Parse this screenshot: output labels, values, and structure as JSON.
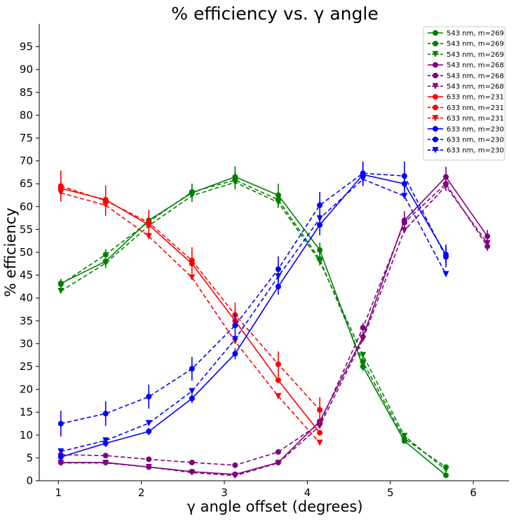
{
  "chart_data": {
    "type": "line",
    "title": "% efficiency vs. γ angle",
    "xlabel": "γ angle offset (degrees)",
    "ylabel": "% efficiency",
    "xlim": [
      0.77,
      6.43
    ],
    "ylim": [
      0,
      100
    ],
    "xticks": [
      "1",
      "2",
      "3",
      "4",
      "5",
      "6"
    ],
    "yticks": [
      "0",
      "5",
      "10",
      "15",
      "20",
      "25",
      "30",
      "35",
      "40",
      "45",
      "50",
      "55",
      "60",
      "65",
      "70",
      "75",
      "80",
      "85",
      "90",
      "95"
    ],
    "grid": false,
    "legend_position": "top-right",
    "series": [
      {
        "name": "543 nm, m=269",
        "color": "#008000",
        "linestyle": "solid",
        "marker": "circle",
        "x": [
          1.03,
          1.57,
          2.09,
          2.61,
          3.13,
          3.65,
          4.15,
          4.67,
          5.17,
          5.67
        ],
        "y": [
          43.2,
          48.0,
          57.0,
          63.0,
          66.5,
          62.5,
          50.5,
          25.0,
          8.7,
          1.2
        ],
        "err": [
          1.0,
          1.5,
          1.5,
          2.0,
          2.3,
          2.5,
          1.6,
          1.0,
          0.6,
          0.6
        ]
      },
      {
        "name": "543 nm, m=269",
        "color": "#008000",
        "linestyle": "dashed",
        "marker": "circle",
        "x": [
          1.03,
          1.57,
          2.09,
          2.61,
          3.13,
          3.65,
          4.15,
          4.67,
          5.17,
          5.67
        ],
        "y": [
          43.0,
          49.5,
          56.7,
          63.2,
          65.8,
          61.5,
          48.5,
          26.0,
          9.2,
          3.0
        ],
        "err": [
          1.0,
          1.2,
          1.2,
          1.8,
          2.0,
          1.8,
          1.4,
          1.0,
          0.6,
          0.6
        ]
      },
      {
        "name": "543 nm, m=269",
        "color": "#008000",
        "linestyle": "dashed",
        "marker": "triangle-down",
        "x": [
          1.03,
          1.57,
          2.09,
          2.61,
          3.13,
          3.65,
          4.15,
          4.67,
          5.17,
          5.67
        ],
        "y": [
          41.5,
          47.6,
          55.8,
          62.4,
          65.3,
          60.9,
          48.0,
          27.5,
          9.8,
          2.4
        ],
        "err": [
          0.4,
          0.4,
          0.4,
          0.4,
          0.4,
          0.4,
          0.4,
          0.4,
          0.4,
          0.4
        ]
      },
      {
        "name": "543 nm, m=268",
        "color": "#800080",
        "linestyle": "solid",
        "marker": "circle",
        "x": [
          1.03,
          1.57,
          2.09,
          2.61,
          3.13,
          3.65,
          4.15,
          4.67,
          5.17,
          5.67,
          6.17
        ],
        "y": [
          4.0,
          4.0,
          3.0,
          2.0,
          1.4,
          4.0,
          13.0,
          31.5,
          57.0,
          66.5,
          53.5
        ],
        "err": [
          0.5,
          0.5,
          0.5,
          0.5,
          0.5,
          0.5,
          0.8,
          1.0,
          2.0,
          2.2,
          1.4
        ]
      },
      {
        "name": "543 nm, m=268",
        "color": "#800080",
        "linestyle": "dashed",
        "marker": "circle",
        "x": [
          1.03,
          1.57,
          2.09,
          2.61,
          3.13,
          3.65,
          4.15,
          4.67,
          5.17,
          5.67,
          6.17
        ],
        "y": [
          5.7,
          5.5,
          4.7,
          4.0,
          3.4,
          6.3,
          12.5,
          33.5,
          56.5,
          65.0,
          51.3
        ],
        "err": [
          0.5,
          0.5,
          0.5,
          0.5,
          0.5,
          0.5,
          0.8,
          1.0,
          1.6,
          1.6,
          1.0
        ]
      },
      {
        "name": "543 nm, m=268",
        "color": "#800080",
        "linestyle": "dashed",
        "marker": "triangle-down",
        "x": [
          1.03,
          1.57,
          2.09,
          2.61,
          3.13,
          3.65,
          4.15,
          4.67,
          5.17,
          5.67,
          6.17
        ],
        "y": [
          3.9,
          3.9,
          3.0,
          1.8,
          1.1,
          3.9,
          12.0,
          31.0,
          54.8,
          64.5,
          52.0
        ],
        "err": [
          0.3,
          0.3,
          0.3,
          0.3,
          0.3,
          0.3,
          0.3,
          0.3,
          0.3,
          0.3,
          0.3
        ]
      },
      {
        "name": "633 nm, m=231",
        "color": "#ff0000",
        "linestyle": "solid",
        "marker": "circle",
        "x": [
          1.03,
          1.57,
          2.09,
          2.61,
          3.13,
          3.65,
          4.15
        ],
        "y": [
          64.0,
          61.5,
          56.0,
          47.5,
          35.0,
          22.0,
          10.5
        ],
        "err": [
          0.6,
          0.6,
          0.6,
          0.6,
          0.6,
          0.6,
          0.6
        ]
      },
      {
        "name": "633 nm, m=231",
        "color": "#ff0000",
        "linestyle": "dashed",
        "marker": "circle",
        "x": [
          1.03,
          1.57,
          2.09,
          2.61,
          3.13,
          3.65,
          4.15
        ],
        "y": [
          64.5,
          61.3,
          56.5,
          48.2,
          36.3,
          25.5,
          15.5
        ],
        "err": [
          3.4,
          3.3,
          2.8,
          2.9,
          2.7,
          2.8,
          2.8
        ]
      },
      {
        "name": "633 nm, m=231",
        "color": "#ff0000",
        "linestyle": "dashed",
        "marker": "triangle-down",
        "x": [
          1.03,
          1.57,
          2.09,
          2.61,
          3.13,
          3.65,
          4.15
        ],
        "y": [
          63.0,
          60.3,
          53.5,
          44.5,
          30.5,
          18.5,
          8.3
        ],
        "err": [
          0.5,
          0.5,
          0.5,
          0.5,
          0.5,
          0.5,
          0.5
        ]
      },
      {
        "name": "633 nm, m=230",
        "color": "#0000ff",
        "linestyle": "solid",
        "marker": "circle",
        "x": [
          1.03,
          1.57,
          2.09,
          2.61,
          3.13,
          3.65,
          4.15,
          4.67,
          5.17,
          5.67
        ],
        "y": [
          5.2,
          8.2,
          10.8,
          18.0,
          27.8,
          42.5,
          56.0,
          67.0,
          65.0,
          49.5
        ],
        "err": [
          0.8,
          0.8,
          0.8,
          1.0,
          1.2,
          1.8,
          2.3,
          2.5,
          2.2,
          2.2
        ]
      },
      {
        "name": "633 nm, m=230",
        "color": "#0000ff",
        "linestyle": "dashed",
        "marker": "circle",
        "x": [
          1.03,
          1.57,
          2.09,
          2.61,
          3.13,
          3.65,
          4.15,
          4.67,
          5.17,
          5.67
        ],
        "y": [
          12.5,
          14.7,
          18.4,
          24.5,
          34.0,
          46.3,
          60.3,
          67.3,
          66.7,
          49.0
        ],
        "err": [
          2.8,
          2.7,
          2.6,
          2.6,
          2.7,
          2.8,
          2.9,
          2.6,
          3.2,
          2.3
        ]
      },
      {
        "name": "633 nm, m=230",
        "color": "#0000ff",
        "linestyle": "dashed",
        "marker": "triangle-down",
        "x": [
          1.03,
          1.57,
          2.09,
          2.61,
          3.13,
          3.65,
          4.15,
          4.67,
          5.17,
          5.67
        ],
        "y": [
          6.4,
          8.8,
          12.6,
          19.6,
          31.0,
          44.7,
          57.4,
          66.0,
          62.3,
          45.2
        ],
        "err": [
          0.3,
          0.3,
          0.3,
          0.3,
          0.3,
          0.3,
          0.3,
          0.3,
          0.3,
          0.3
        ]
      }
    ]
  }
}
